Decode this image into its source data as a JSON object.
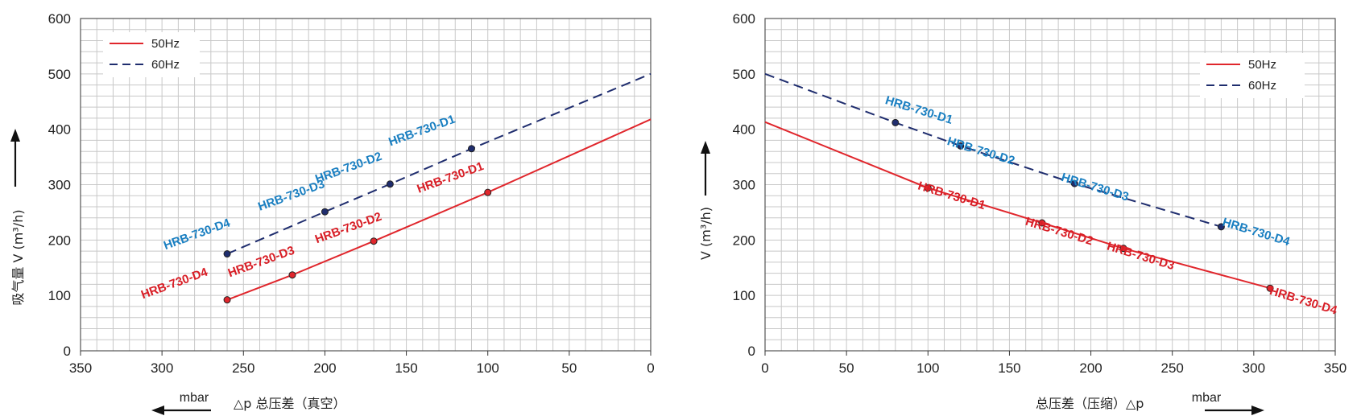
{
  "chart_data": [
    {
      "type": "line",
      "xlim": [
        350,
        0
      ],
      "ylim": [
        0,
        600
      ],
      "x_ticks": [
        "350",
        "300",
        "250",
        "200",
        "150",
        "100",
        "50",
        "0"
      ],
      "y_ticks": [
        "0",
        "100",
        "200",
        "300",
        "400",
        "500",
        "600"
      ],
      "xlabel_unit": "mbar",
      "xlabel": "△p 总压差（真空）",
      "ylabel": "吸气量 V (m³/h)",
      "legend": {
        "position": "top-left",
        "entries": [
          "50Hz",
          "60Hz"
        ]
      },
      "grid": true,
      "series": [
        {
          "name": "50Hz",
          "color": "#e0262c",
          "dash": "solid",
          "x": [
            260,
            220,
            170,
            100,
            0
          ],
          "y": [
            92,
            137,
            198,
            286,
            418
          ],
          "points": [
            {
              "x": 260,
              "y": 92,
              "label": "HRB-730-D4"
            },
            {
              "x": 220,
              "y": 137,
              "label": "HRB-730-D3"
            },
            {
              "x": 170,
              "y": 198,
              "label": "HRB-730-D2"
            },
            {
              "x": 100,
              "y": 286,
              "label": "HRB-730-D1"
            }
          ]
        },
        {
          "name": "60Hz",
          "color": "#1f2d6e",
          "dash": "dashed",
          "x": [
            260,
            200,
            160,
            110,
            0
          ],
          "y": [
            175,
            251,
            301,
            365,
            500
          ],
          "points": [
            {
              "x": 260,
              "y": 175,
              "label": "HRB-730-D4"
            },
            {
              "x": 200,
              "y": 251,
              "label": "HRB-730-D3"
            },
            {
              "x": 160,
              "y": 301,
              "label": "HRB-730-D2"
            },
            {
              "x": 110,
              "y": 365,
              "label": "HRB-730-D1"
            }
          ]
        }
      ]
    },
    {
      "type": "line",
      "xlim": [
        0,
        350
      ],
      "ylim": [
        0,
        600
      ],
      "x_ticks": [
        "0",
        "50",
        "100",
        "150",
        "200",
        "250",
        "300",
        "350"
      ],
      "y_ticks": [
        "0",
        "100",
        "200",
        "300",
        "400",
        "500",
        "600"
      ],
      "xlabel_unit": "mbar",
      "xlabel": "总压差（压缩）△p",
      "ylabel": "V (m³/h)",
      "legend": {
        "position": "top-right",
        "entries": [
          "50Hz",
          "60Hz"
        ]
      },
      "grid": true,
      "series": [
        {
          "name": "50Hz",
          "color": "#e0262c",
          "dash": "solid",
          "x": [
            0,
            100,
            170,
            220,
            310
          ],
          "y": [
            413,
            294,
            231,
            185,
            113
          ],
          "points": [
            {
              "x": 100,
              "y": 294,
              "label": "HRB-730-D1"
            },
            {
              "x": 170,
              "y": 231,
              "label": "HRB-730-D2"
            },
            {
              "x": 220,
              "y": 185,
              "label": "HRB-730-D3"
            },
            {
              "x": 310,
              "y": 113,
              "label": "HRB-730-D4"
            }
          ]
        },
        {
          "name": "60Hz",
          "color": "#1f2d6e",
          "dash": "dashed",
          "x": [
            0,
            80,
            120,
            190,
            280
          ],
          "y": [
            500,
            412,
            370,
            302,
            224
          ],
          "points": [
            {
              "x": 80,
              "y": 412,
              "label": "HRB-730-D1"
            },
            {
              "x": 120,
              "y": 370,
              "label": "HRB-730-D2"
            },
            {
              "x": 190,
              "y": 302,
              "label": "HRB-730-D3"
            },
            {
              "x": 280,
              "y": 224,
              "label": "HRB-730-D4"
            }
          ]
        }
      ]
    }
  ]
}
